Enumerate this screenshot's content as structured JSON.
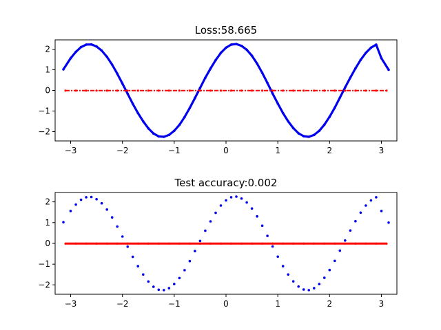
{
  "chart_data": [
    {
      "type": "scatter",
      "title": "Loss:58.665",
      "xlabel": "",
      "ylabel": "",
      "xlim": [
        -3.3,
        3.3
      ],
      "ylim": [
        -2.45,
        2.45
      ],
      "grid": false,
      "x_ticks": [
        -3,
        -2,
        -1,
        0,
        1,
        2,
        3
      ],
      "y_ticks": [
        -2,
        -1,
        0,
        1,
        2
      ],
      "x_tick_labels": [
        "−3",
        "−2",
        "−1",
        "0",
        "1",
        "2",
        "3"
      ],
      "y_tick_labels": [
        "−2",
        "−1",
        "0",
        "1",
        "2"
      ],
      "series": [
        {
          "color": "#0000ee",
          "x": [
            -3.14,
            -3.0,
            -2.9,
            -2.8,
            -2.7,
            -2.6,
            -2.5,
            -2.4,
            -2.3,
            -2.2,
            -2.1,
            -2.0,
            -1.9,
            -1.8,
            -1.7,
            -1.6,
            -1.5,
            -1.4,
            -1.3,
            -1.2,
            -1.1,
            -1.0,
            -0.9,
            -0.8,
            -0.7,
            -0.6,
            -0.5,
            -0.4,
            -0.3,
            -0.2,
            -0.1,
            0.0,
            0.1,
            0.2,
            0.3,
            0.4,
            0.5,
            0.6,
            0.7,
            0.8,
            0.9,
            1.0,
            1.1,
            1.2,
            1.3,
            1.4,
            1.5,
            1.6,
            1.7,
            1.8,
            1.9,
            2.0,
            2.1,
            2.2,
            2.3,
            2.4,
            2.5,
            2.6,
            2.7,
            2.8,
            2.9,
            3.0,
            3.14
          ],
          "y": [
            1.02,
            1.56,
            1.87,
            2.1,
            2.22,
            2.23,
            2.13,
            1.93,
            1.63,
            1.25,
            0.81,
            0.33,
            -0.16,
            -0.65,
            -1.1,
            -1.5,
            -1.84,
            -2.09,
            -2.23,
            -2.25,
            -2.16,
            -1.96,
            -1.67,
            -1.29,
            -0.85,
            -0.37,
            0.12,
            0.61,
            1.06,
            1.47,
            1.82,
            2.07,
            2.22,
            2.25,
            2.16,
            1.97,
            1.68,
            1.3,
            0.85,
            0.36,
            -0.15,
            -0.64,
            -1.1,
            -1.5,
            -1.83,
            -2.08,
            -2.22,
            -2.25,
            -2.16,
            -1.96,
            -1.66,
            -1.28,
            -0.84,
            -0.35,
            0.14,
            0.62,
            1.07,
            1.48,
            1.82,
            2.07,
            2.22,
            1.56,
            1.0
          ]
        },
        {
          "color": "#ff0000",
          "x": [
            -3.1,
            -2.9,
            -2.7,
            -2.5,
            -2.3,
            -2.1,
            -1.9,
            -1.7,
            -1.5,
            -1.3,
            -1.1,
            -0.9,
            -0.7,
            -0.5,
            -0.3,
            -0.1,
            0.1,
            0.3,
            0.5,
            0.7,
            0.9,
            1.1,
            1.3,
            1.5,
            1.7,
            1.9,
            2.1,
            2.3,
            2.5,
            2.7,
            2.9,
            3.1
          ],
          "y": [
            -0.01,
            -0.01,
            -0.01,
            -0.01,
            -0.01,
            -0.01,
            -0.01,
            -0.01,
            -0.01,
            -0.01,
            -0.01,
            -0.01,
            -0.01,
            -0.01,
            -0.01,
            -0.01,
            -0.01,
            -0.01,
            -0.01,
            -0.01,
            -0.01,
            -0.01,
            -0.01,
            -0.01,
            -0.01,
            -0.01,
            -0.01,
            -0.01,
            -0.01,
            -0.01,
            -0.01,
            -0.01
          ]
        }
      ]
    },
    {
      "type": "scatter",
      "title": "Test accuracy:0.002",
      "xlabel": "",
      "ylabel": "",
      "xlim": [
        -3.3,
        3.3
      ],
      "ylim": [
        -2.45,
        2.45
      ],
      "grid": false,
      "x_ticks": [
        -3,
        -2,
        -1,
        0,
        1,
        2,
        3
      ],
      "y_ticks": [
        -2,
        -1,
        0,
        1,
        2
      ],
      "x_tick_labels": [
        "−3",
        "−2",
        "−1",
        "0",
        "1",
        "2",
        "3"
      ],
      "y_tick_labels": [
        "−2",
        "−1",
        "0",
        "1",
        "2"
      ],
      "series": [
        {
          "color": "#0000ee",
          "x": [
            -3.14,
            -3.0,
            -2.9,
            -2.8,
            -2.7,
            -2.6,
            -2.5,
            -2.4,
            -2.3,
            -2.2,
            -2.1,
            -2.0,
            -1.9,
            -1.8,
            -1.7,
            -1.6,
            -1.5,
            -1.4,
            -1.3,
            -1.2,
            -1.1,
            -1.0,
            -0.9,
            -0.8,
            -0.7,
            -0.6,
            -0.5,
            -0.4,
            -0.3,
            -0.2,
            -0.1,
            0.0,
            0.1,
            0.2,
            0.3,
            0.4,
            0.5,
            0.6,
            0.7,
            0.8,
            0.9,
            1.0,
            1.1,
            1.2,
            1.3,
            1.4,
            1.5,
            1.6,
            1.7,
            1.8,
            1.9,
            2.0,
            2.1,
            2.2,
            2.3,
            2.4,
            2.5,
            2.6,
            2.7,
            2.8,
            2.9,
            3.0,
            3.14
          ],
          "y": [
            1.02,
            1.56,
            1.87,
            2.1,
            2.22,
            2.23,
            2.13,
            1.93,
            1.63,
            1.25,
            0.81,
            0.33,
            -0.16,
            -0.65,
            -1.1,
            -1.5,
            -1.84,
            -2.09,
            -2.23,
            -2.25,
            -2.16,
            -1.96,
            -1.67,
            -1.29,
            -0.85,
            -0.37,
            0.12,
            0.61,
            1.06,
            1.47,
            1.82,
            2.07,
            2.22,
            2.25,
            2.16,
            1.97,
            1.68,
            1.3,
            0.85,
            0.36,
            -0.15,
            -0.64,
            -1.1,
            -1.5,
            -1.83,
            -2.08,
            -2.22,
            -2.25,
            -2.16,
            -1.96,
            -1.66,
            -1.28,
            -0.84,
            -0.35,
            0.14,
            0.62,
            1.07,
            1.48,
            1.82,
            2.07,
            2.22,
            1.56,
            1.0
          ]
        },
        {
          "color": "#ff0000",
          "x": [
            -3.1,
            -2.9,
            -2.7,
            -2.5,
            -2.3,
            -2.1,
            -1.9,
            -1.7,
            -1.5,
            -1.3,
            -1.1,
            -0.9,
            -0.7,
            -0.5,
            -0.3,
            -0.1,
            0.1,
            0.3,
            0.5,
            0.7,
            0.9,
            1.1,
            1.3,
            1.5,
            1.7,
            1.9,
            2.1,
            2.3,
            2.5,
            2.7,
            2.9,
            3.1
          ],
          "y": [
            -0.01,
            -0.01,
            -0.01,
            -0.01,
            -0.01,
            -0.01,
            -0.01,
            -0.01,
            -0.01,
            -0.01,
            -0.01,
            -0.01,
            -0.01,
            -0.01,
            -0.01,
            -0.01,
            -0.01,
            -0.01,
            -0.01,
            -0.01,
            -0.01,
            -0.01,
            -0.01,
            -0.01,
            -0.01,
            -0.01,
            -0.01,
            -0.01,
            -0.01,
            -0.01,
            -0.01,
            -0.01
          ]
        }
      ]
    }
  ]
}
